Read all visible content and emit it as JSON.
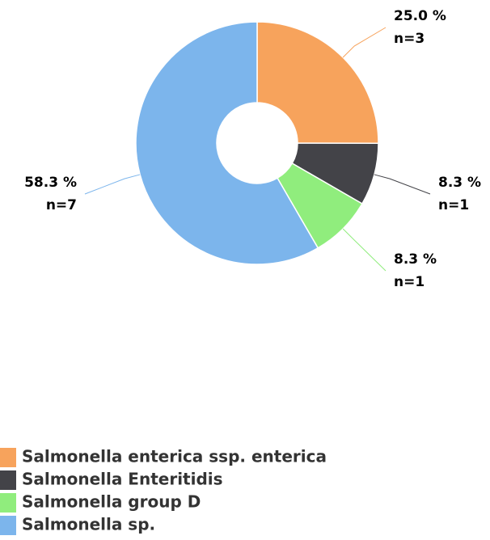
{
  "chart_data": {
    "type": "pie",
    "categories": [
      "Salmonella enterica ssp. enterica",
      "Salmonella Enteritidis",
      "Salmonella group D",
      "Salmonella sp."
    ],
    "values": [
      25.0,
      8.3,
      8.3,
      58.3
    ],
    "value_labels": [
      "25.0 %",
      "8.3 %",
      "8.3 %",
      "58.3 %"
    ],
    "counts": [
      3,
      1,
      1,
      7
    ],
    "count_labels": [
      "n=3",
      "n=1",
      "n=1",
      "n=7"
    ],
    "colors": [
      "#f7a35c",
      "#434348",
      "#90ed7d",
      "#7cb5ec"
    ],
    "donut": true,
    "legend": "bottom-left"
  }
}
